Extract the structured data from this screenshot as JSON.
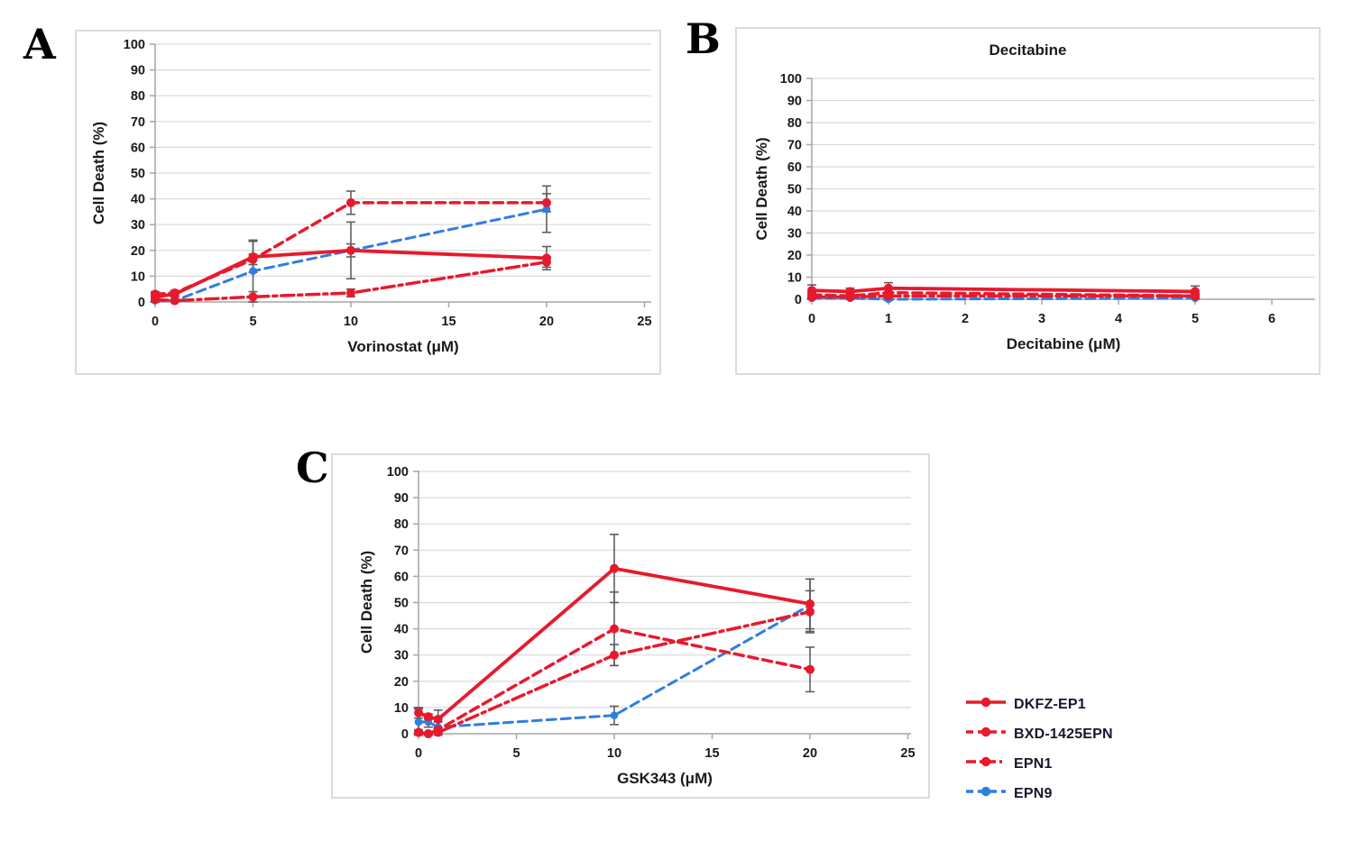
{
  "colors": {
    "red": "#e8192c",
    "blue": "#2f7ee0",
    "grid": "#d9d9d9",
    "axis": "#a6a6a6",
    "error_bar": "#5f5f5f",
    "text": "#1a1a1a"
  },
  "figure": {
    "panels": [
      {
        "letter": "A"
      },
      {
        "letter": "B"
      },
      {
        "letter": "C"
      }
    ]
  },
  "legend": {
    "position": "bottom-right",
    "items": [
      {
        "label": "DKFZ-EP1",
        "color": "#e8192c",
        "line_style": "solid"
      },
      {
        "label": "BXD-1425EPN",
        "color": "#e8192c",
        "line_style": "dashed"
      },
      {
        "label": "EPN1",
        "color": "#e8192c",
        "line_style": "dashdot"
      },
      {
        "label": "EPN9",
        "color": "#2f7ee0",
        "line_style": "dashed"
      }
    ]
  },
  "chart_data": [
    {
      "panel": "A",
      "type": "line",
      "title": "",
      "xlabel": "Vorinostat (μM)",
      "ylabel": "Cell Death (%)",
      "xlim": [
        0,
        25.5
      ],
      "ylim": [
        0,
        100
      ],
      "xticks": [
        0,
        5,
        10,
        15,
        20,
        25
      ],
      "yticks": [
        0,
        10,
        20,
        30,
        40,
        50,
        60,
        70,
        80,
        90,
        100
      ],
      "grid": "horizontal",
      "x": [
        0,
        1,
        5,
        10,
        20
      ],
      "series": [
        {
          "name": "DKFZ-EP1",
          "color": "#e8192c",
          "line_style": "solid",
          "values": [
            2,
            3,
            17.5,
            20,
            17
          ],
          "errors": [
            1.5,
            1,
            6,
            2.5,
            4.5
          ]
        },
        {
          "name": "BXD-1425EPN",
          "color": "#e8192c",
          "line_style": "dashed",
          "values": [
            3,
            3.5,
            16.5,
            38.5,
            38.5
          ],
          "errors": [
            1,
            1,
            2,
            4.5,
            3.5
          ]
        },
        {
          "name": "EPN1",
          "color": "#e8192c",
          "line_style": "dashdot",
          "values": [
            1,
            0.5,
            2,
            3.5,
            15.5
          ],
          "errors": [
            1,
            0.5,
            2,
            1.5,
            2
          ]
        },
        {
          "name": "EPN9",
          "color": "#2f7ee0",
          "line_style": "dashed",
          "values": [
            0.5,
            0.5,
            12,
            20,
            36
          ],
          "errors": [
            0.5,
            0.5,
            12,
            11,
            9
          ]
        }
      ]
    },
    {
      "panel": "B",
      "type": "line",
      "title": "Decitabine",
      "xlabel": "Decitabine (μM)",
      "ylabel": "Cell Death (%)",
      "xlim": [
        0,
        6.55
      ],
      "ylim": [
        0,
        100
      ],
      "xticks": [
        0,
        1,
        2,
        3,
        4,
        5,
        6
      ],
      "yticks": [
        0,
        10,
        20,
        30,
        40,
        50,
        60,
        70,
        80,
        90,
        100
      ],
      "grid": "horizontal",
      "x": [
        0,
        0.5,
        1,
        5
      ],
      "series": [
        {
          "name": "DKFZ-EP1",
          "color": "#e8192c",
          "line_style": "solid",
          "values": [
            4,
            3.5,
            5,
            3.5
          ],
          "errors": [
            2.5,
            1.5,
            2.5,
            2.5
          ]
        },
        {
          "name": "BXD-1425EPN",
          "color": "#e8192c",
          "line_style": "dashed",
          "values": [
            2,
            1.5,
            3,
            1.5
          ],
          "errors": [
            1,
            1,
            1.5,
            1
          ]
        },
        {
          "name": "EPN1",
          "color": "#e8192c",
          "line_style": "dashdot",
          "values": [
            1,
            1,
            1.5,
            1.5
          ],
          "errors": [
            0.5,
            0.5,
            0.5,
            0.5
          ]
        },
        {
          "name": "EPN9",
          "color": "#2f7ee0",
          "line_style": "dashed",
          "values": [
            0.5,
            0.5,
            0,
            0.5
          ],
          "errors": [
            0.5,
            0.5,
            0.5,
            0.5
          ]
        }
      ]
    },
    {
      "panel": "C",
      "type": "line",
      "title": "",
      "xlabel": "GSK343 (μM)",
      "ylabel": "Cell Death (%)",
      "xlim": [
        0,
        25.2
      ],
      "ylim": [
        0,
        100
      ],
      "xticks": [
        0,
        5,
        10,
        15,
        20,
        25
      ],
      "yticks": [
        0,
        10,
        20,
        30,
        40,
        50,
        60,
        70,
        80,
        90,
        100
      ],
      "grid": "horizontal",
      "x": [
        0,
        0.5,
        1,
        10,
        20
      ],
      "series": [
        {
          "name": "DKFZ-EP1",
          "color": "#e8192c",
          "line_style": "solid",
          "values": [
            8,
            6.5,
            5.5,
            63,
            49.5
          ],
          "errors": [
            2,
            1,
            3.5,
            13,
            9.5
          ]
        },
        {
          "name": "BXD-1425EPN",
          "color": "#e8192c",
          "line_style": "dashed",
          "values": [
            0.5,
            0,
            1.5,
            40,
            24.5
          ],
          "errors": [
            1,
            0.5,
            1,
            14,
            8.5
          ]
        },
        {
          "name": "EPN1",
          "color": "#e8192c",
          "line_style": "dashdot",
          "values": [
            0.5,
            0,
            0.5,
            30,
            46.5
          ],
          "errors": [
            1,
            0.5,
            1,
            4,
            8
          ]
        },
        {
          "name": "EPN9",
          "color": "#2f7ee0",
          "line_style": "dashed",
          "values": [
            4.5,
            4.5,
            2.5,
            7,
            49
          ],
          "errors": [
            5,
            2,
            2,
            3.5,
            10
          ]
        }
      ]
    }
  ]
}
